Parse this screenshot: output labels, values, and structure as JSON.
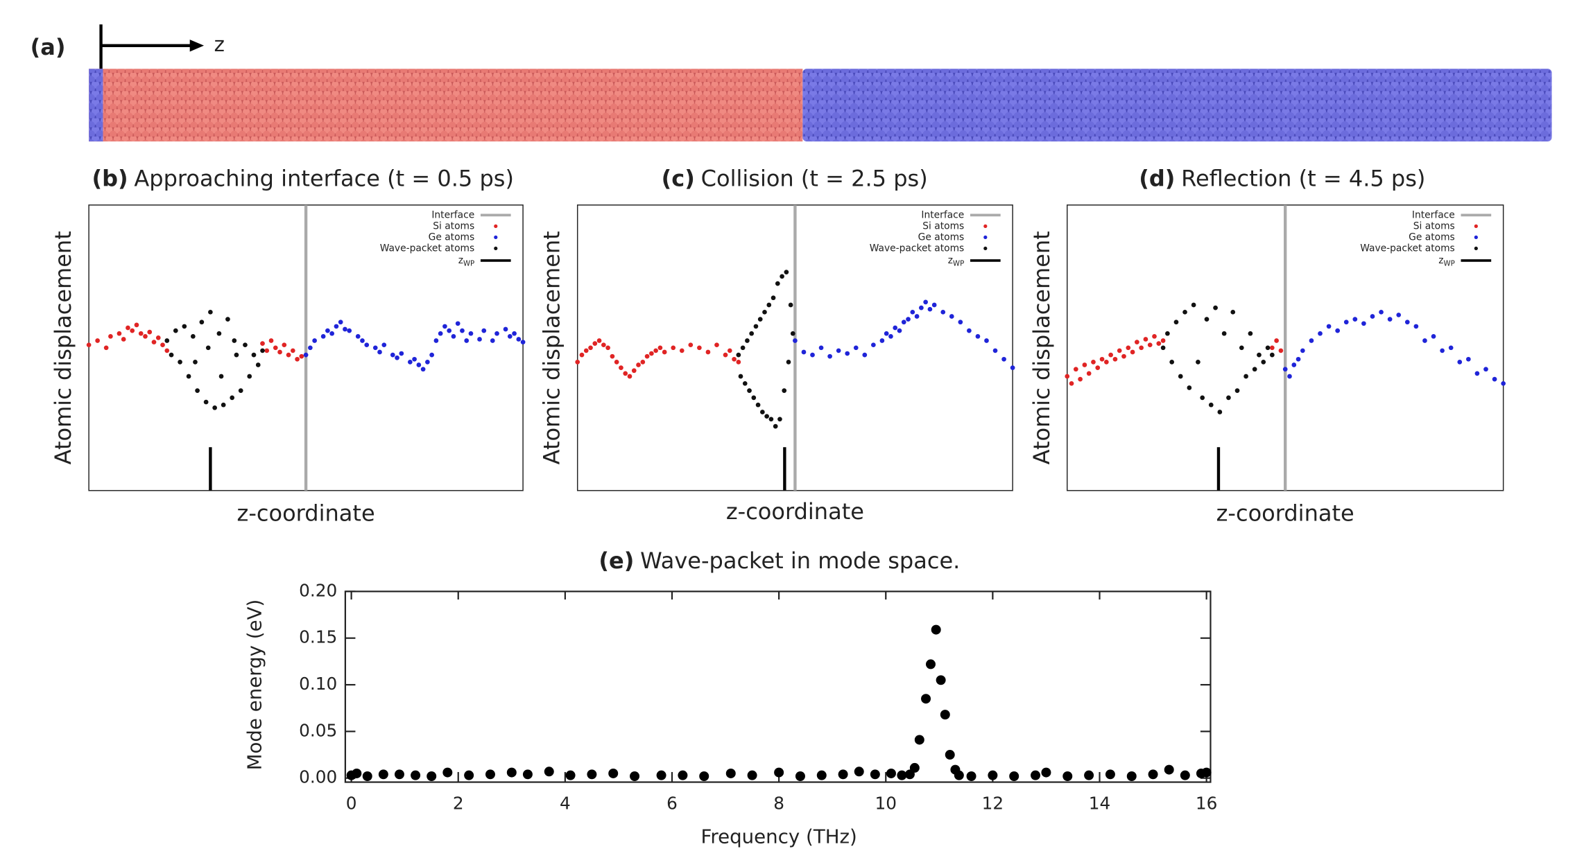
{
  "structure": {
    "label": "(a)",
    "axis": "z"
  },
  "chart_data": [
    {
      "type": "scatter",
      "label": "(b)",
      "title": "Approaching interface (t = 0.5 ps)",
      "xlabel": "z-coordinate",
      "ylabel": "Atomic displacement",
      "xlim": [
        0,
        100
      ],
      "ylim": [
        -1,
        1
      ],
      "interface": {
        "name": "Interface",
        "color": "#aaaaaa",
        "x": 50
      },
      "series": [
        {
          "name": "Si atoms",
          "color": "#e02424",
          "x": [
            0,
            2,
            4,
            5,
            7,
            8,
            9,
            10,
            11,
            12,
            13,
            14,
            15,
            16,
            17,
            18,
            40,
            41,
            42,
            43,
            44,
            45,
            46,
            47,
            48,
            49
          ],
          "values": [
            0.02,
            0.05,
            0.0,
            0.08,
            0.1,
            0.06,
            0.14,
            0.12,
            0.16,
            0.1,
            0.08,
            0.11,
            0.04,
            0.07,
            0.02,
            -0.02,
            0.03,
            -0.02,
            0.05,
            0.0,
            -0.03,
            0.02,
            -0.05,
            -0.02,
            -0.08,
            -0.06
          ]
        },
        {
          "name": "Ge atoms",
          "color": "#1f24d8",
          "x": [
            50,
            51,
            52,
            54,
            55,
            56,
            57,
            58,
            59,
            60,
            62,
            63,
            64,
            66,
            67,
            68,
            70,
            71,
            72,
            74,
            75,
            76,
            77,
            78,
            79,
            80,
            81,
            82,
            83,
            84,
            85,
            86,
            87,
            88,
            90,
            91,
            93,
            94,
            96,
            97,
            98,
            99,
            100
          ],
          "values": [
            -0.05,
            0.0,
            0.05,
            0.08,
            0.12,
            0.1,
            0.15,
            0.18,
            0.13,
            0.12,
            0.08,
            0.05,
            0.02,
            0.0,
            -0.03,
            0.02,
            -0.05,
            -0.07,
            -0.04,
            -0.1,
            -0.08,
            -0.12,
            -0.15,
            -0.1,
            -0.05,
            0.05,
            0.1,
            0.15,
            0.12,
            0.08,
            0.17,
            0.12,
            0.05,
            0.1,
            0.06,
            0.12,
            0.05,
            0.1,
            0.13,
            0.08,
            0.1,
            0.06,
            0.04
          ]
        },
        {
          "name": "Wave-packet atoms",
          "color": "#111111",
          "x": [
            18,
            19,
            20,
            21,
            22,
            23,
            24,
            24.5,
            25,
            26,
            27,
            27.5,
            28,
            29,
            30,
            30.5,
            31,
            32,
            33,
            33.5,
            34,
            35,
            36,
            37,
            38,
            39,
            40
          ],
          "values": [
            0.05,
            -0.05,
            0.12,
            -0.1,
            0.15,
            -0.2,
            0.08,
            -0.1,
            -0.3,
            0.18,
            -0.38,
            0.0,
            0.25,
            -0.42,
            0.1,
            -0.2,
            -0.4,
            0.2,
            -0.35,
            0.05,
            -0.05,
            -0.3,
            0.02,
            -0.2,
            -0.05,
            -0.12,
            -0.02
          ]
        }
      ],
      "z_wp": {
        "name": "z",
        "subscript": "WP",
        "color": "#000000",
        "x": 28
      }
    },
    {
      "type": "scatter",
      "label": "(c)",
      "title": "Collision (t = 2.5 ps)",
      "xlabel": "z-coordinate",
      "ylabel": "Atomic displacement",
      "xlim": [
        0,
        100
      ],
      "ylim": [
        -1,
        1
      ],
      "interface": {
        "name": "Interface",
        "color": "#aaaaaa",
        "x": 50
      },
      "series": [
        {
          "name": "Si atoms",
          "color": "#e02424",
          "x": [
            0,
            1,
            2,
            3,
            4,
            5,
            6,
            7,
            8,
            9,
            10,
            11,
            12,
            13,
            14,
            15,
            16,
            17,
            18,
            19,
            20,
            22,
            24,
            26,
            28,
            30,
            32,
            34,
            35,
            36,
            37
          ],
          "values": [
            -0.1,
            -0.05,
            -0.02,
            0.0,
            0.03,
            0.05,
            0.02,
            0.0,
            -0.06,
            -0.1,
            -0.14,
            -0.18,
            -0.2,
            -0.16,
            -0.12,
            -0.1,
            -0.06,
            -0.04,
            -0.02,
            0.0,
            -0.03,
            0.0,
            -0.02,
            0.02,
            0.0,
            -0.03,
            0.02,
            -0.05,
            -0.02,
            -0.08,
            -0.1
          ]
        },
        {
          "name": "Ge atoms",
          "color": "#1f24d8",
          "x": [
            50,
            52,
            54,
            56,
            58,
            60,
            62,
            64,
            66,
            68,
            70,
            71,
            72,
            73,
            74,
            75,
            76,
            77,
            78,
            79,
            80,
            81,
            82,
            84,
            86,
            88,
            90,
            92,
            94,
            96,
            98,
            100
          ],
          "values": [
            0.05,
            -0.03,
            -0.05,
            0.0,
            -0.06,
            -0.02,
            -0.04,
            0.0,
            -0.05,
            0.02,
            0.05,
            0.1,
            0.08,
            0.14,
            0.12,
            0.18,
            0.2,
            0.25,
            0.22,
            0.28,
            0.32,
            0.27,
            0.3,
            0.25,
            0.22,
            0.18,
            0.12,
            0.08,
            0.05,
            -0.02,
            -0.08,
            -0.14
          ]
        },
        {
          "name": "Wave-packet atoms",
          "color": "#111111",
          "x": [
            37,
            37.5,
            38,
            38.5,
            39,
            39.5,
            40,
            40.5,
            41,
            41.5,
            42,
            42.5,
            43,
            43.5,
            44,
            44.5,
            45,
            45.5,
            46,
            46.5,
            47,
            47.5,
            48,
            48.5,
            49,
            49.5
          ],
          "values": [
            -0.05,
            -0.2,
            0.0,
            -0.25,
            0.05,
            -0.3,
            0.1,
            -0.35,
            0.15,
            -0.4,
            0.2,
            -0.45,
            0.25,
            -0.48,
            0.3,
            -0.5,
            0.35,
            -0.55,
            0.45,
            -0.5,
            0.5,
            -0.3,
            0.53,
            -0.1,
            0.3,
            0.1
          ]
        }
      ],
      "z_wp": {
        "name": "z",
        "subscript": "WP",
        "color": "#000000",
        "x": 47.6
      }
    },
    {
      "type": "scatter",
      "label": "(d)",
      "title": "Reflection (t = 4.5 ps)",
      "xlabel": "z-coordinate",
      "ylabel": "Atomic displacement",
      "xlim": [
        0,
        100
      ],
      "ylim": [
        -1,
        1
      ],
      "interface": {
        "name": "Interface",
        "color": "#aaaaaa",
        "x": 50
      },
      "series": [
        {
          "name": "Si atoms",
          "color": "#e02424",
          "x": [
            0,
            1,
            2,
            3,
            4,
            5,
            6,
            7,
            8,
            9,
            10,
            11,
            12,
            13,
            14,
            15,
            16,
            17,
            18,
            19,
            20,
            21,
            22,
            47,
            48,
            49
          ],
          "values": [
            -0.2,
            -0.25,
            -0.15,
            -0.22,
            -0.12,
            -0.18,
            -0.1,
            -0.14,
            -0.08,
            -0.1,
            -0.05,
            -0.08,
            -0.02,
            -0.06,
            0.0,
            -0.03,
            0.04,
            0.0,
            0.06,
            0.02,
            0.08,
            0.03,
            0.05,
            0.0,
            0.05,
            -0.02
          ]
        },
        {
          "name": "Ge atoms",
          "color": "#1f24d8",
          "x": [
            50,
            51,
            52,
            53,
            54,
            56,
            58,
            60,
            62,
            64,
            66,
            68,
            70,
            72,
            74,
            76,
            78,
            80,
            82,
            84,
            86,
            88,
            90,
            92,
            94,
            96,
            98,
            100
          ],
          "values": [
            -0.15,
            -0.2,
            -0.12,
            -0.08,
            -0.02,
            0.05,
            0.1,
            0.15,
            0.12,
            0.18,
            0.2,
            0.17,
            0.22,
            0.25,
            0.2,
            0.23,
            0.18,
            0.15,
            0.05,
            0.08,
            -0.02,
            0.0,
            -0.1,
            -0.08,
            -0.18,
            -0.15,
            -0.22,
            -0.25
          ]
        },
        {
          "name": "Wave-packet atoms",
          "color": "#111111",
          "x": [
            22,
            23,
            24,
            25,
            26,
            27,
            28,
            29,
            30,
            31,
            32,
            33,
            34,
            35,
            36,
            37,
            38,
            39,
            40,
            41,
            42,
            43,
            44,
            45,
            46,
            47
          ],
          "values": [
            0.0,
            0.1,
            -0.1,
            0.18,
            -0.2,
            0.25,
            -0.28,
            0.3,
            -0.1,
            -0.35,
            0.2,
            -0.4,
            0.28,
            -0.45,
            0.1,
            -0.35,
            0.25,
            -0.3,
            0.0,
            -0.2,
            0.1,
            -0.15,
            -0.05,
            -0.1,
            0.0,
            -0.05
          ]
        }
      ],
      "z_wp": {
        "name": "z",
        "subscript": "WP",
        "color": "#000000",
        "x": 34.7
      }
    },
    {
      "type": "scatter",
      "label": "(e)",
      "title": "Wave-packet in mode space.",
      "xlabel": "Frequency (THz)",
      "ylabel": "Mode energy (eV)",
      "xlim": [
        0,
        16
      ],
      "ylim": [
        0,
        0.2
      ],
      "xticks": [
        0,
        2,
        4,
        6,
        8,
        10,
        12,
        14,
        16
      ],
      "yticks": [
        {
          "value": 0,
          "label": "0.00"
        },
        {
          "value": 0.05,
          "label": "0.05"
        },
        {
          "value": 0.1,
          "label": "0.10"
        },
        {
          "value": 0.15,
          "label": "0.15"
        },
        {
          "value": 0.2,
          "label": "0.20"
        }
      ],
      "series": [
        {
          "color": "#000000",
          "x": [
            0,
            0.1,
            0.3,
            0.6,
            0.9,
            1.2,
            1.5,
            1.8,
            2.2,
            2.6,
            3.0,
            3.3,
            3.7,
            4.1,
            4.5,
            4.9,
            5.3,
            5.8,
            6.2,
            6.6,
            7.1,
            7.5,
            8.0,
            8.4,
            8.8,
            9.2,
            9.5,
            9.8,
            10.1,
            10.3,
            10.45,
            10.54,
            10.63,
            10.75,
            10.84,
            10.94,
            11.03,
            11.11,
            11.2,
            11.3,
            11.37,
            11.6,
            12.0,
            12.4,
            12.8,
            13.0,
            13.4,
            13.8,
            14.2,
            14.6,
            15.0,
            15.3,
            15.6,
            15.9,
            16.0
          ],
          "values": [
            0.003,
            0.005,
            0.002,
            0.004,
            0.004,
            0.003,
            0.002,
            0.006,
            0.003,
            0.004,
            0.006,
            0.004,
            0.007,
            0.003,
            0.004,
            0.005,
            0.002,
            0.003,
            0.003,
            0.002,
            0.005,
            0.003,
            0.006,
            0.002,
            0.003,
            0.004,
            0.007,
            0.004,
            0.005,
            0.003,
            0.004,
            0.011,
            0.041,
            0.085,
            0.122,
            0.159,
            0.105,
            0.068,
            0.025,
            0.009,
            0.003,
            0.002,
            0.003,
            0.002,
            0.003,
            0.006,
            0.002,
            0.003,
            0.004,
            0.002,
            0.004,
            0.009,
            0.003,
            0.005,
            0.006
          ]
        }
      ]
    }
  ]
}
